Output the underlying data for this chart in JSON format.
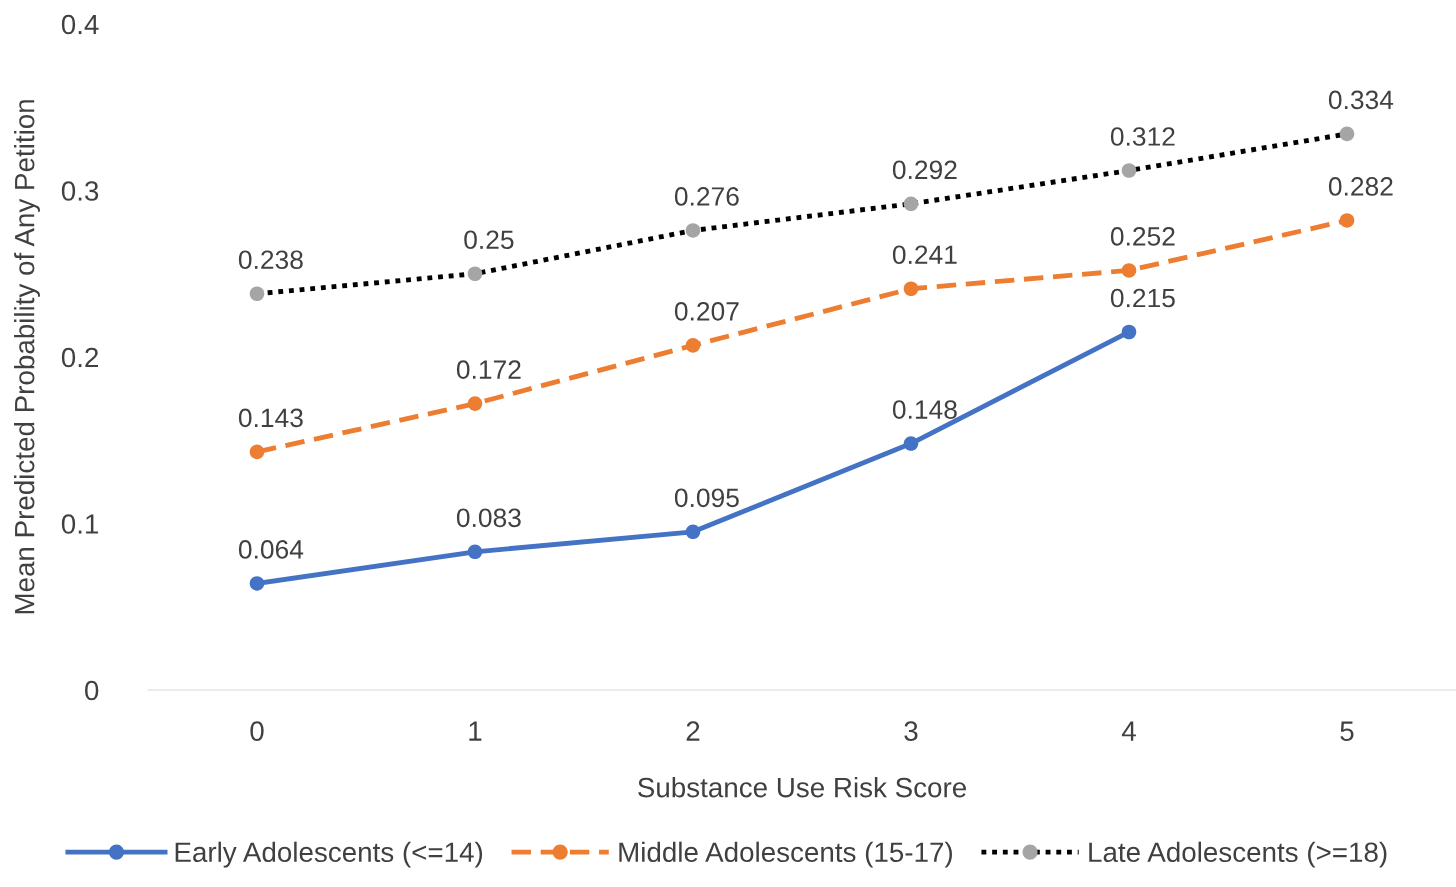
{
  "chart_data": {
    "type": "line",
    "xlabel": "Substance Use Risk Score",
    "ylabel": "Mean Predicted Probability of Any Petition",
    "categories": [
      "0",
      "1",
      "2",
      "3",
      "4",
      "5"
    ],
    "series": [
      {
        "name": "Early Adolescents (<=14)",
        "color": "#4472c4",
        "line_style": "solid",
        "values": [
          0.064,
          0.083,
          0.095,
          0.148,
          0.215,
          null
        ]
      },
      {
        "name": "Middle Adolescents (15-17)",
        "color": "#ed7d31",
        "line_style": "dashed",
        "values": [
          0.143,
          0.172,
          0.207,
          0.241,
          0.252,
          0.282
        ]
      },
      {
        "name": "Late Adolescents (>=18)",
        "color": "#000000",
        "colors": [
          "#a5a5a5",
          "#a5a5a5",
          "#a5a5a5",
          "#a5a5a5",
          "#a5a5a5",
          "#a5a5a5"
        ],
        "line_style": "dotted",
        "values": [
          0.238,
          0.25,
          0.276,
          0.292,
          0.312,
          0.334
        ]
      }
    ],
    "ylim": [
      0,
      0.4
    ],
    "yticks": [
      0,
      0.1,
      0.2,
      0.3,
      0.4
    ],
    "grid": false,
    "legend": "bottom",
    "marker": "circle",
    "data_labels": true
  }
}
